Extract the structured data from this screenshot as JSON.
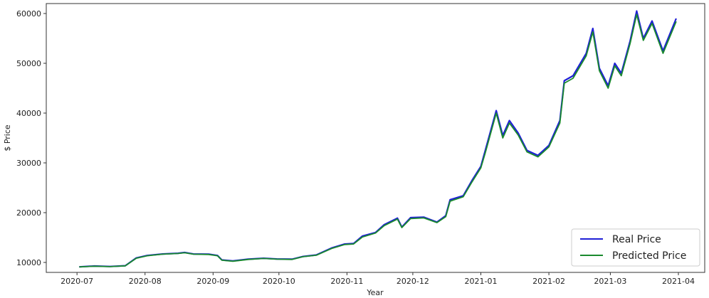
{
  "chart_data": {
    "type": "line",
    "title": "",
    "xlabel": "Year",
    "ylabel": "$ Price",
    "ylim": [
      8000,
      62000
    ],
    "xlim": [
      "2020-06-17",
      "2021-04-13"
    ],
    "grid": false,
    "legend_position": "bottom-right",
    "x_ticks": [
      "2020-07",
      "2020-08",
      "2020-09",
      "2020-10",
      "2020-11",
      "2020-12",
      "2021-01",
      "2021-02",
      "2021-03",
      "2021-04"
    ],
    "y_ticks": [
      10000,
      20000,
      30000,
      40000,
      50000,
      60000
    ],
    "series": [
      {
        "name": "Real Price",
        "color": "#1f1fd6",
        "points": [
          [
            "2020-07-02",
            9120
          ],
          [
            "2020-07-09",
            9280
          ],
          [
            "2020-07-16",
            9180
          ],
          [
            "2020-07-23",
            9350
          ],
          [
            "2020-07-28",
            10900
          ],
          [
            "2020-08-02",
            11400
          ],
          [
            "2020-08-09",
            11700
          ],
          [
            "2020-08-16",
            11850
          ],
          [
            "2020-08-19",
            12000
          ],
          [
            "2020-08-23",
            11700
          ],
          [
            "2020-08-30",
            11650
          ],
          [
            "2020-09-03",
            11400
          ],
          [
            "2020-09-05",
            10500
          ],
          [
            "2020-09-10",
            10300
          ],
          [
            "2020-09-17",
            10650
          ],
          [
            "2020-09-24",
            10850
          ],
          [
            "2020-09-30",
            10700
          ],
          [
            "2020-10-07",
            10650
          ],
          [
            "2020-10-12",
            11200
          ],
          [
            "2020-10-18",
            11500
          ],
          [
            "2020-10-25",
            12900
          ],
          [
            "2020-10-31",
            13700
          ],
          [
            "2020-11-04",
            13800
          ],
          [
            "2020-11-08",
            15300
          ],
          [
            "2020-11-14",
            16000
          ],
          [
            "2020-11-18",
            17600
          ],
          [
            "2020-11-24",
            18900
          ],
          [
            "2020-11-26",
            17100
          ],
          [
            "2020-11-30",
            19000
          ],
          [
            "2020-12-06",
            19100
          ],
          [
            "2020-12-12",
            18100
          ],
          [
            "2020-12-16",
            19400
          ],
          [
            "2020-12-18",
            22600
          ],
          [
            "2020-12-24",
            23400
          ],
          [
            "2020-12-28",
            26500
          ],
          [
            "2021-01-01",
            29300
          ],
          [
            "2021-01-03",
            32500
          ],
          [
            "2021-01-08",
            40500
          ],
          [
            "2021-01-11",
            35500
          ],
          [
            "2021-01-14",
            38500
          ],
          [
            "2021-01-18",
            36000
          ],
          [
            "2021-01-22",
            32500
          ],
          [
            "2021-01-27",
            31500
          ],
          [
            "2021-02-01",
            33500
          ],
          [
            "2021-02-06",
            38500
          ],
          [
            "2021-02-08",
            46500
          ],
          [
            "2021-02-12",
            47500
          ],
          [
            "2021-02-18",
            52000
          ],
          [
            "2021-02-21",
            57000
          ],
          [
            "2021-02-24",
            49000
          ],
          [
            "2021-02-28",
            45500
          ],
          [
            "2021-03-03",
            50000
          ],
          [
            "2021-03-06",
            48000
          ],
          [
            "2021-03-10",
            54500
          ],
          [
            "2021-03-13",
            60500
          ],
          [
            "2021-03-16",
            55000
          ],
          [
            "2021-03-20",
            58500
          ],
          [
            "2021-03-25",
            52500
          ],
          [
            "2021-03-31",
            59000
          ]
        ]
      },
      {
        "name": "Predicted Price",
        "color": "#1a8a2e",
        "points": [
          [
            "2020-07-02",
            9100
          ],
          [
            "2020-07-09",
            9250
          ],
          [
            "2020-07-16",
            9160
          ],
          [
            "2020-07-23",
            9320
          ],
          [
            "2020-07-28",
            10850
          ],
          [
            "2020-08-02",
            11350
          ],
          [
            "2020-08-09",
            11650
          ],
          [
            "2020-08-16",
            11800
          ],
          [
            "2020-08-19",
            11950
          ],
          [
            "2020-08-23",
            11650
          ],
          [
            "2020-08-30",
            11600
          ],
          [
            "2020-09-03",
            11350
          ],
          [
            "2020-09-05",
            10450
          ],
          [
            "2020-09-10",
            10250
          ],
          [
            "2020-09-17",
            10600
          ],
          [
            "2020-09-24",
            10800
          ],
          [
            "2020-09-30",
            10650
          ],
          [
            "2020-10-07",
            10600
          ],
          [
            "2020-10-12",
            11150
          ],
          [
            "2020-10-18",
            11450
          ],
          [
            "2020-10-25",
            12800
          ],
          [
            "2020-10-31",
            13600
          ],
          [
            "2020-11-04",
            13700
          ],
          [
            "2020-11-08",
            15100
          ],
          [
            "2020-11-14",
            15900
          ],
          [
            "2020-11-18",
            17400
          ],
          [
            "2020-11-24",
            18700
          ],
          [
            "2020-11-26",
            17000
          ],
          [
            "2020-11-30",
            18800
          ],
          [
            "2020-12-06",
            18950
          ],
          [
            "2020-12-12",
            18000
          ],
          [
            "2020-12-16",
            19200
          ],
          [
            "2020-12-18",
            22300
          ],
          [
            "2020-12-24",
            23200
          ],
          [
            "2020-12-28",
            26200
          ],
          [
            "2021-01-01",
            29000
          ],
          [
            "2021-01-03",
            32000
          ],
          [
            "2021-01-08",
            40000
          ],
          [
            "2021-01-11",
            35000
          ],
          [
            "2021-01-14",
            38000
          ],
          [
            "2021-01-18",
            35600
          ],
          [
            "2021-01-22",
            32200
          ],
          [
            "2021-01-27",
            31200
          ],
          [
            "2021-02-01",
            33200
          ],
          [
            "2021-02-06",
            38000
          ],
          [
            "2021-02-08",
            46000
          ],
          [
            "2021-02-12",
            47000
          ],
          [
            "2021-02-18",
            51500
          ],
          [
            "2021-02-21",
            56300
          ],
          [
            "2021-02-24",
            48500
          ],
          [
            "2021-02-28",
            45000
          ],
          [
            "2021-03-03",
            49500
          ],
          [
            "2021-03-06",
            47500
          ],
          [
            "2021-03-10",
            54000
          ],
          [
            "2021-03-13",
            59800
          ],
          [
            "2021-03-16",
            54600
          ],
          [
            "2021-03-20",
            58000
          ],
          [
            "2021-03-25",
            52000
          ],
          [
            "2021-03-31",
            58400
          ]
        ]
      }
    ]
  }
}
